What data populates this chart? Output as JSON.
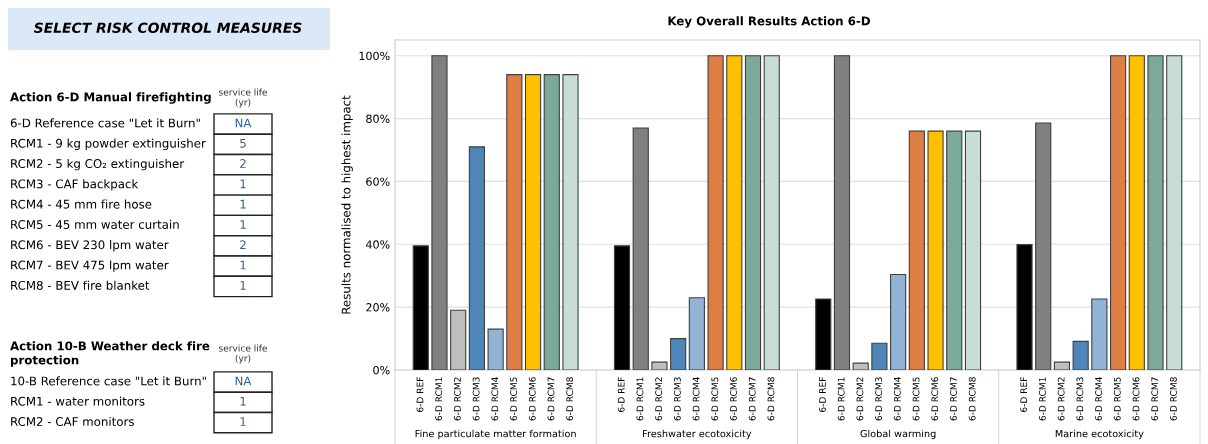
{
  "chart_data": [
    {
      "type": "other",
      "title": "SELECT RISK CONTROL MEASURES",
      "annotations": [
        "Action 6-D Manual firefighting",
        "service life\n(yr)",
        "6-D Reference case \"Let it Burn\"",
        "RCM1 - 9 kg powder extinguisher",
        "RCM2 - 5 kg CO₂ extinguisher",
        "RCM3 - CAF backpack",
        "RCM4 - 45 mm fire hose",
        "RCM5 - 45 mm water curtain",
        "RCM6 - BEV 230 lpm water",
        "RCM7 - BEV 475 lpm water",
        "RCM8 - BEV fire blanket",
        "NA",
        "5",
        "2",
        "1",
        "1",
        "1",
        "2",
        "1",
        "1",
        "Action 10-B Weather deck fire\nprotection",
        "service life\n(yr)",
        "10-B Reference case \"Let it Burn\"",
        "RCM1 - water monitors",
        "RCM2 - CAF monitors",
        "NA",
        "1",
        "1"
      ]
    },
    {
      "type": "bar",
      "title": "Key Overall Results Action 6-D",
      "ylabel": "Results normalised to highest impact",
      "categories": [
        "Fine particulate matter formation",
        "Freshwater ecotoxicity",
        "Global warming",
        "Marine ecotoxicity"
      ],
      "series": [
        {
          "name": "6-D REF",
          "color": "#000000",
          "values": [
            39.5,
            39.5,
            22.6,
            39.9
          ]
        },
        {
          "name": "6-D RCM1",
          "color": "#808080",
          "values": [
            100,
            77,
            100,
            78.6
          ]
        },
        {
          "name": "6-D RCM2",
          "color": "#bfbfbf",
          "values": [
            19,
            2.5,
            2.2,
            2.5
          ]
        },
        {
          "name": "6-D RCM3",
          "color": "#4e86b8",
          "values": [
            71,
            10,
            8.5,
            9.1
          ]
        },
        {
          "name": "6-D RCM4",
          "color": "#92b4d4",
          "values": [
            13,
            23,
            30.4,
            22.6
          ]
        },
        {
          "name": "6-D RCM5",
          "color": "#dd7e45",
          "values": [
            94,
            100,
            76,
            100
          ]
        },
        {
          "name": "6-D RCM6",
          "color": "#ffc000",
          "values": [
            94,
            100,
            76,
            100
          ]
        },
        {
          "name": "6-D RCM7",
          "color": "#7ba99b",
          "values": [
            94,
            100,
            76,
            100
          ]
        },
        {
          "name": "6-D RCM8",
          "color": "#c9ddd8",
          "values": [
            94,
            100,
            76,
            100
          ]
        }
      ],
      "ylim": [
        0,
        105
      ],
      "yticks": [
        {
          "value": 0,
          "label": "0%"
        },
        {
          "value": 20,
          "label": "20%"
        },
        {
          "value": 40,
          "label": "40%"
        },
        {
          "value": 60,
          "label": "60%"
        },
        {
          "value": 80,
          "label": "80%"
        },
        {
          "value": 100,
          "label": "100%"
        }
      ],
      "grid": "y"
    }
  ]
}
